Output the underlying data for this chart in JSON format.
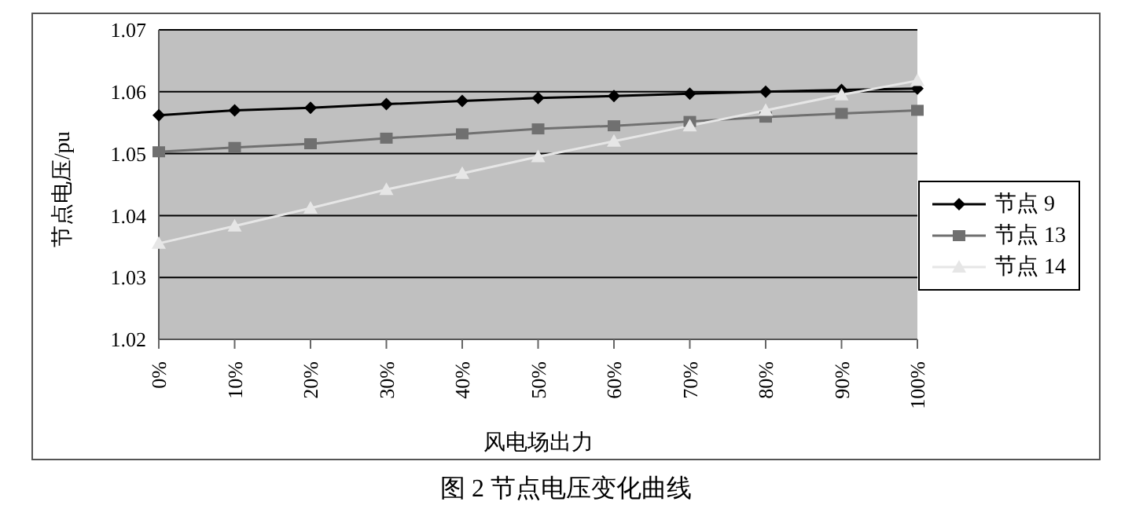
{
  "chart_data": {
    "type": "line",
    "xlabel": "风电场出力",
    "ylabel": "节点电压/pu",
    "annotations": [
      "图 2 节点电压变化曲线"
    ],
    "categories": [
      "0%",
      "10%",
      "20%",
      "30%",
      "40%",
      "50%",
      "60%",
      "70%",
      "80%",
      "90%",
      "100%"
    ],
    "series": [
      {
        "name": "节点 9",
        "color": "#000000",
        "marker": "diamond",
        "values": [
          1.0562,
          1.057,
          1.0574,
          1.058,
          1.0585,
          1.059,
          1.0593,
          1.0597,
          1.06,
          1.0603,
          1.0605
        ]
      },
      {
        "name": "节点 13",
        "color": "#707070",
        "marker": "square",
        "values": [
          1.0503,
          1.051,
          1.0516,
          1.0525,
          1.0532,
          1.054,
          1.0545,
          1.0552,
          1.0559,
          1.0565,
          1.057
        ]
      },
      {
        "name": "节点 14",
        "color": "#e6e6e6",
        "marker": "triangle",
        "values": [
          1.0355,
          1.0383,
          1.0412,
          1.0442,
          1.0468,
          1.0495,
          1.052,
          1.0545,
          1.057,
          1.0595,
          1.0618
        ]
      }
    ],
    "ylim": [
      1.02,
      1.07
    ],
    "yticks": [
      1.02,
      1.03,
      1.04,
      1.05,
      1.06,
      1.07
    ],
    "grid": "y",
    "legend": "right",
    "line_style": "solid"
  }
}
